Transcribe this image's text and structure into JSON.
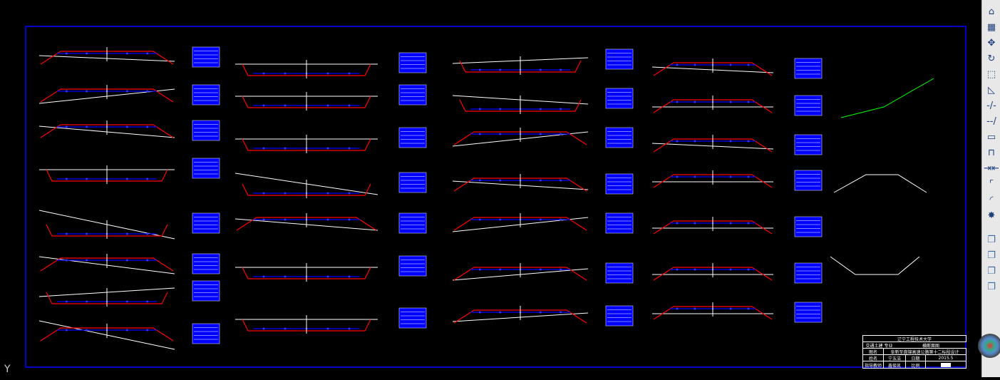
{
  "title_block": {
    "school": "辽宁工程技术大学",
    "major": "交通土建 专业",
    "drawing_name": "横断面图",
    "label_title": "图名",
    "project": "阜新至盘锦高速公路第十二标段设计",
    "label_name": "姓名",
    "student": "宁五洁",
    "label_date": "日期",
    "date": "2015.5",
    "label_advisor": "指导教师",
    "advisor": "鑫俊凯",
    "label_scale": "比例"
  },
  "axis_label": "Y",
  "colors": {
    "background": "#000000",
    "frame": "#0000ff",
    "ground_line": "#ffffff",
    "design_line": "#ff0000",
    "table": "#0000ff",
    "centerline": "#00ffff"
  },
  "toolbar": {
    "items": [
      "erase-icon",
      "copy-array-icon",
      "move-icon",
      "rotate-icon",
      "scale-icon",
      "stretch-icon",
      "trim-icon",
      "extend-icon",
      "break-at-point-icon",
      "break-icon",
      "join-icon",
      "chamfer-icon",
      "fillet-icon",
      "explode-icon",
      "bring-front-icon",
      "send-back-icon",
      "bring-above-icon",
      "send-under-icon"
    ]
  }
}
